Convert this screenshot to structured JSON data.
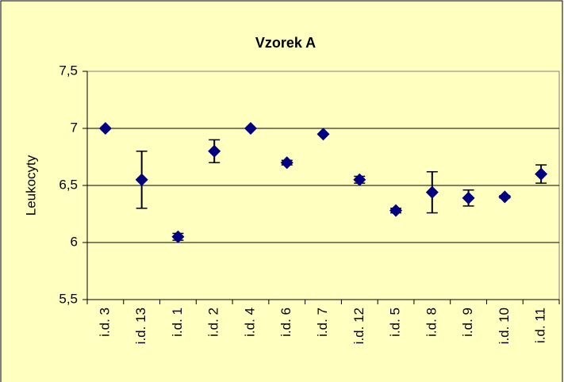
{
  "chart_data": {
    "type": "scatter",
    "title": "Vzorek A",
    "y_label": "Leukocyty",
    "categories": [
      "i.d. 3",
      "i.d. 13",
      "i.d. 1",
      "i.d. 2",
      "i.d. 4",
      "i.d. 6",
      "i.d. 7",
      "i.d. 12",
      "i.d. 5",
      "i.d. 8",
      "i.d. 9",
      "i.d. 10",
      "i.d. 11"
    ],
    "values": [
      7.0,
      6.55,
      6.05,
      6.8,
      7.0,
      6.7,
      6.95,
      6.55,
      6.28,
      6.44,
      6.39,
      6.4,
      6.6
    ],
    "errors": [
      0,
      0.25,
      0.03,
      0.1,
      0,
      0.02,
      0,
      0.03,
      0.02,
      0.18,
      0.07,
      0.01,
      0.08
    ],
    "color": "#000080",
    "ylim": [
      5.5,
      7.5
    ],
    "yticks": [
      {
        "value": 5.5,
        "label": "5,5"
      },
      6,
      {
        "value": 6.5,
        "label": "6,5"
      },
      7,
      {
        "value": 7.5,
        "label": "7,5"
      }
    ],
    "grid": true
  }
}
